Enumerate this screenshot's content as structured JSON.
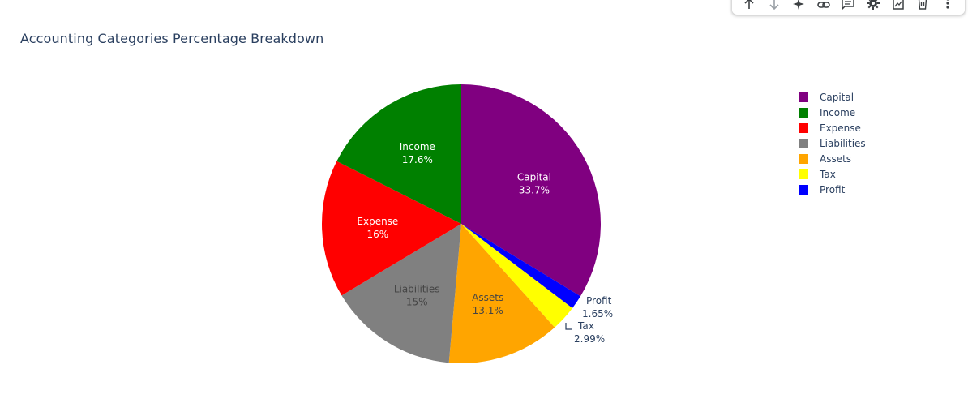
{
  "toolbar": {
    "icons": [
      "arrow-up-icon",
      "arrow-down-icon",
      "sparkle-icon",
      "link-icon",
      "comment-icon",
      "gear-icon",
      "image-icon",
      "trash-icon",
      "more-vertical-icon"
    ]
  },
  "chart_data": {
    "type": "pie",
    "title": "Accounting Categories Percentage Breakdown",
    "direction": "clockwise",
    "start": "top",
    "legend_position": "right",
    "slices": [
      {
        "label": "Capital",
        "value": 33.7,
        "text": "33.7%",
        "color": "#800080",
        "text_color": "#ffffff",
        "label_position": "inside"
      },
      {
        "label": "Profit",
        "value": 1.65,
        "text": "1.65%",
        "color": "#0000ff",
        "text_color": "#2a3f5f",
        "label_position": "outside"
      },
      {
        "label": "Tax",
        "value": 2.99,
        "text": "2.99%",
        "color": "#ffff00",
        "text_color": "#2a3f5f",
        "label_position": "outside"
      },
      {
        "label": "Assets",
        "value": 13.1,
        "text": "13.1%",
        "color": "#ffa500",
        "text_color": "#444444",
        "label_position": "inside"
      },
      {
        "label": "Liabilities",
        "value": 15,
        "text": "15%",
        "color": "#808080",
        "text_color": "#444444",
        "label_position": "inside"
      },
      {
        "label": "Expense",
        "value": 16,
        "text": "16%",
        "color": "#ff0000",
        "text_color": "#ffffff",
        "label_position": "inside"
      },
      {
        "label": "Income",
        "value": 17.6,
        "text": "17.6%",
        "color": "#008000",
        "text_color": "#ffffff",
        "label_position": "inside"
      }
    ],
    "legend": [
      {
        "label": "Capital",
        "color": "#800080"
      },
      {
        "label": "Income",
        "color": "#008000"
      },
      {
        "label": "Expense",
        "color": "#ff0000"
      },
      {
        "label": "Liabilities",
        "color": "#808080"
      },
      {
        "label": "Assets",
        "color": "#ffa500"
      },
      {
        "label": "Tax",
        "color": "#ffff00"
      },
      {
        "label": "Profit",
        "color": "#0000ff"
      }
    ]
  }
}
